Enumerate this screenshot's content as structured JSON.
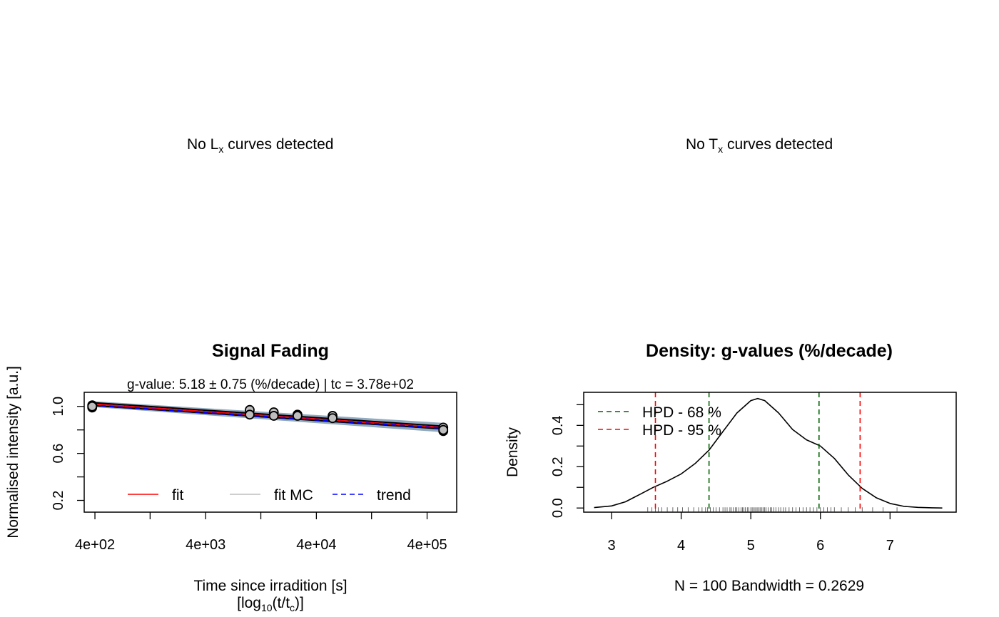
{
  "panels": {
    "top_left": {
      "message_prefix": "No L",
      "message_sub": "x",
      "message_suffix": " curves detected"
    },
    "top_right": {
      "message_prefix": "No T",
      "message_sub": "x",
      "message_suffix": " curves detected"
    }
  },
  "chart_data": [
    {
      "type": "scatter",
      "title": "Signal Fading",
      "subtitle": "g-value: 5.18 ± 0.75 (%/decade) | tc = 3.78e+02",
      "xlabel": "Time since irradition [s]",
      "xlabel2_prefix": "[log",
      "xlabel2_sub1": "10",
      "xlabel2_mid": "(t/t",
      "xlabel2_sub2": "c",
      "xlabel2_suffix": ")]",
      "ylabel": "Normalised intensity [a.u.]",
      "xscale": "log",
      "xlim": [
        320,
        740000
      ],
      "ylim": [
        0.1,
        1.12
      ],
      "xtick_labels": [
        {
          "value": 400,
          "label": "4e+02"
        },
        {
          "value": 4000,
          "label": "4e+03"
        },
        {
          "value": 40000,
          "label": "4e+04"
        },
        {
          "value": 400000,
          "label": "4e+05"
        }
      ],
      "xtick_minor": [
        1260,
        12600,
        126000
      ],
      "ytick_labels": [
        {
          "value": 1.0,
          "label": "1.0"
        },
        {
          "value": 0.6,
          "label": "0.6"
        },
        {
          "value": 0.2,
          "label": "0.2"
        }
      ],
      "ytick_minor": [
        0.8,
        0.4
      ],
      "points": [
        {
          "x": 378,
          "y": 1.01
        },
        {
          "x": 378,
          "y": 0.99
        },
        {
          "x": 378,
          "y": 1.0
        },
        {
          "x": 10000,
          "y": 0.97
        },
        {
          "x": 10000,
          "y": 0.93
        },
        {
          "x": 16500,
          "y": 0.95
        },
        {
          "x": 16500,
          "y": 0.92
        },
        {
          "x": 27000,
          "y": 0.93
        },
        {
          "x": 27000,
          "y": 0.92
        },
        {
          "x": 56000,
          "y": 0.92
        },
        {
          "x": 56000,
          "y": 0.9
        },
        {
          "x": 560000,
          "y": 0.82
        },
        {
          "x": 560000,
          "y": 0.79
        },
        {
          "x": 560000,
          "y": 0.8
        }
      ],
      "series": [
        {
          "name": "fit",
          "color": "#ff0000",
          "style": "solid",
          "x": [
            378,
            560000
          ],
          "y": [
            1.02,
            0.82
          ]
        },
        {
          "name": "fit MC",
          "color": "#bebebe",
          "style": "solid",
          "band_upper": [
            1.045,
            0.86
          ],
          "band_lower": [
            0.995,
            0.78
          ]
        },
        {
          "name": "trend",
          "color": "#0000ff",
          "style": "dashed",
          "x": [
            378,
            560000
          ],
          "y": [
            1.01,
            0.815
          ]
        }
      ],
      "band_color": "#36648b",
      "legend_position": "bottom"
    },
    {
      "type": "line",
      "title": "Density: g-values (%/decade)",
      "xlabel": "N = 100   Bandwidth = 0.2629",
      "ylabel": "Density",
      "xlim": [
        2.6,
        7.95
      ],
      "ylim": [
        -0.02,
        0.56
      ],
      "xticks": [
        3,
        4,
        5,
        6,
        7
      ],
      "yticks_labeled": [
        0.0,
        0.2,
        0.4
      ],
      "yticks_minor": [
        0.1,
        0.3,
        0.5
      ],
      "density_x": [
        2.75,
        3.0,
        3.2,
        3.4,
        3.6,
        3.8,
        4.0,
        4.2,
        4.4,
        4.6,
        4.8,
        5.0,
        5.1,
        5.2,
        5.4,
        5.6,
        5.8,
        6.0,
        6.2,
        6.4,
        6.6,
        6.8,
        7.0,
        7.2,
        7.4,
        7.6,
        7.75
      ],
      "density_y": [
        0.002,
        0.01,
        0.03,
        0.065,
        0.1,
        0.13,
        0.165,
        0.215,
        0.28,
        0.37,
        0.46,
        0.52,
        0.53,
        0.52,
        0.46,
        0.38,
        0.33,
        0.3,
        0.24,
        0.16,
        0.095,
        0.05,
        0.022,
        0.008,
        0.003,
        0.001,
        0.0
      ],
      "rug": [
        3.52,
        3.58,
        3.63,
        3.67,
        3.72,
        3.8,
        3.88,
        3.95,
        4.02,
        4.1,
        4.18,
        4.25,
        4.3,
        4.35,
        4.38,
        4.42,
        4.46,
        4.5,
        4.55,
        4.6,
        4.63,
        4.66,
        4.7,
        4.72,
        4.75,
        4.78,
        4.8,
        4.83,
        4.86,
        4.88,
        4.9,
        4.92,
        4.95,
        4.97,
        5.0,
        5.02,
        5.04,
        5.06,
        5.08,
        5.1,
        5.12,
        5.14,
        5.16,
        5.18,
        5.2,
        5.22,
        5.25,
        5.28,
        5.3,
        5.33,
        5.36,
        5.4,
        5.43,
        5.47,
        5.5,
        5.55,
        5.6,
        5.65,
        5.7,
        5.75,
        5.8,
        5.85,
        5.9,
        5.95,
        6.0,
        6.05,
        6.1,
        6.15,
        6.2,
        6.3,
        6.4,
        6.5,
        6.6,
        6.75,
        6.9,
        7.1
      ],
      "hpd_lines": [
        {
          "name": "HPD - 68 %",
          "color": "#006400",
          "values": [
            4.4,
            5.98
          ]
        },
        {
          "name": "HPD - 95 %",
          "color": "#ff0000",
          "values": [
            3.63,
            6.57
          ]
        }
      ],
      "legend_position": "top-left"
    }
  ]
}
